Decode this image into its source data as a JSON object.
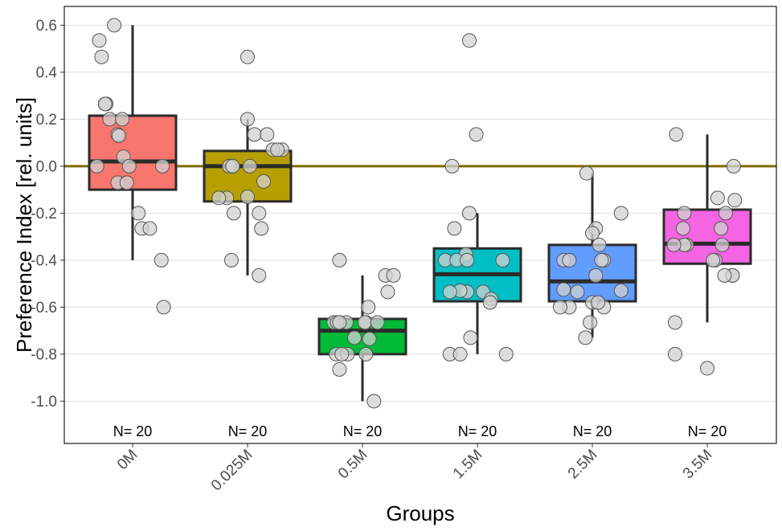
{
  "chart_data": {
    "type": "boxplot",
    "xlabel": "Groups",
    "ylabel": "Preference Index [rel. units]",
    "ylim": [
      -1.18,
      0.68
    ],
    "yticks": [
      -1.0,
      -0.8,
      -0.6,
      -0.4,
      -0.2,
      0.0,
      0.2,
      0.4,
      0.6
    ],
    "ytick_labels": [
      "-1.0",
      "-0.8",
      "-0.6",
      "-0.4",
      "-0.2",
      "0.0",
      "0.2",
      "0.4",
      "0.6"
    ],
    "grid": true,
    "reference_line": {
      "y": 0.0,
      "color": "#7f6a00"
    },
    "categories": [
      "0M",
      "0.025M",
      "0.5M",
      "1.5M",
      "2.5M",
      "3.5M"
    ],
    "n_labels": [
      "N= 20",
      "N= 20",
      "N= 20",
      "N= 20",
      "N= 20",
      "N= 20"
    ],
    "boxes": [
      {
        "category": "0M",
        "color": "#F8766D",
        "whisker_low": -0.4,
        "q1": -0.1,
        "median": 0.02,
        "q3": 0.215,
        "whisker_high": 0.6
      },
      {
        "category": "0.025M",
        "color": "#B79F00",
        "whisker_low": -0.465,
        "q1": -0.15,
        "median": 0.0,
        "q3": 0.065,
        "whisker_high": 0.2
      },
      {
        "category": "0.5M",
        "color": "#00BA38",
        "whisker_low": -1.0,
        "q1": -0.8,
        "median": -0.7,
        "q3": -0.65,
        "whisker_high": -0.465
      },
      {
        "category": "1.5M",
        "color": "#00BFC4",
        "whisker_low": -0.8,
        "q1": -0.575,
        "median": -0.46,
        "q3": -0.35,
        "whisker_high": -0.2
      },
      {
        "category": "2.5M",
        "color": "#619CFF",
        "whisker_low": -0.73,
        "q1": -0.575,
        "median": -0.49,
        "q3": -0.335,
        "whisker_high": -0.03
      },
      {
        "category": "3.5M",
        "color": "#F564E3",
        "whisker_low": -0.665,
        "q1": -0.415,
        "median": -0.33,
        "q3": -0.185,
        "whisker_high": 0.135
      }
    ],
    "points": [
      {
        "category": "0M",
        "jitter": [
          -0.16,
          -0.29,
          -0.27,
          -0.23,
          -0.24,
          -0.2,
          -0.09,
          -0.13,
          -0.12,
          -0.08,
          -0.03,
          -0.31,
          -0.13,
          -0.05,
          0.05,
          0.08,
          0.15,
          0.25,
          0.27,
          0.26
        ],
        "y": [
          0.6,
          0.535,
          0.465,
          0.265,
          0.265,
          0.2,
          0.2,
          0.135,
          0.13,
          0.04,
          0.0,
          0.0,
          -0.07,
          -0.07,
          -0.2,
          -0.265,
          -0.265,
          -0.4,
          -0.6,
          0.0
        ]
      },
      {
        "category": "0.025M",
        "jitter": [
          0.0,
          0.0,
          0.06,
          0.17,
          0.3,
          0.22,
          0.26,
          0.02,
          -0.13,
          -0.16,
          -0.13,
          -0.18,
          -0.12,
          -0.14,
          0.1,
          0.12,
          0.1,
          0.0,
          -0.25,
          0.14
        ],
        "y": [
          0.465,
          0.2,
          0.135,
          0.135,
          0.07,
          0.07,
          0.07,
          0.0,
          0.0,
          0.0,
          0.0,
          -0.135,
          -0.2,
          -0.4,
          -0.465,
          -0.265,
          -0.2,
          -0.13,
          -0.135,
          -0.065
        ]
      },
      {
        "category": "0.5M",
        "jitter": [
          -0.2,
          -0.14,
          -0.25,
          -0.22,
          -0.2,
          0.03,
          -0.07,
          0.05,
          0.2,
          0.27,
          0.22,
          0.02,
          0.06,
          0.13,
          -0.23,
          -0.13,
          -0.18,
          0.03,
          -0.2,
          0.1
        ],
        "y": [
          -0.4,
          -0.665,
          -0.665,
          -0.665,
          -0.665,
          -0.665,
          -0.73,
          -0.6,
          -0.465,
          -0.465,
          -0.535,
          -0.665,
          -0.735,
          -0.665,
          -0.8,
          -0.8,
          -0.8,
          -0.8,
          -0.865,
          -1.0
        ]
      },
      {
        "category": "1.5M",
        "jitter": [
          -0.07,
          -0.01,
          -0.22,
          -0.07,
          -0.2,
          -0.1,
          -0.28,
          -0.18,
          -0.09,
          -0.09,
          0.05,
          -0.15,
          -0.06,
          0.12,
          -0.24,
          -0.24,
          -0.15,
          0.25,
          0.22,
          0.11
        ],
        "y": [
          0.535,
          0.135,
          0.0,
          -0.2,
          -0.265,
          -0.375,
          -0.4,
          -0.4,
          -0.4,
          -0.535,
          -0.535,
          -0.53,
          -0.73,
          -0.565,
          -0.535,
          -0.8,
          -0.8,
          -0.8,
          -0.4,
          -0.58
        ]
      },
      {
        "category": "2.5M",
        "jitter": [
          -0.05,
          0.03,
          0.25,
          0.06,
          0.0,
          0.1,
          -0.25,
          -0.2,
          0.08,
          0.03,
          -0.13,
          -0.25,
          -0.2,
          0.0,
          0.1,
          0.25,
          -0.02,
          -0.28,
          -0.06,
          0.05
        ],
        "y": [
          -0.03,
          -0.265,
          -0.2,
          -0.335,
          -0.285,
          -0.4,
          -0.4,
          -0.4,
          -0.4,
          -0.465,
          -0.535,
          -0.525,
          -0.6,
          -0.58,
          -0.6,
          -0.53,
          -0.665,
          -0.6,
          -0.73,
          -0.58
        ]
      },
      {
        "category": "3.5M",
        "jitter": [
          -0.27,
          -0.2,
          0.23,
          0.24,
          0.09,
          0.16,
          0.12,
          -0.21,
          -0.18,
          -0.2,
          -0.29,
          0.07,
          0.05,
          0.13,
          0.22,
          -0.28,
          -0.28,
          0.22,
          0.15,
          0.0
        ],
        "y": [
          0.135,
          -0.2,
          0.0,
          -0.145,
          -0.135,
          -0.2,
          -0.265,
          -0.265,
          -0.335,
          -0.335,
          -0.335,
          -0.4,
          -0.4,
          -0.335,
          -0.465,
          -0.665,
          -0.8,
          -0.465,
          -0.465,
          -0.86
        ]
      }
    ]
  }
}
